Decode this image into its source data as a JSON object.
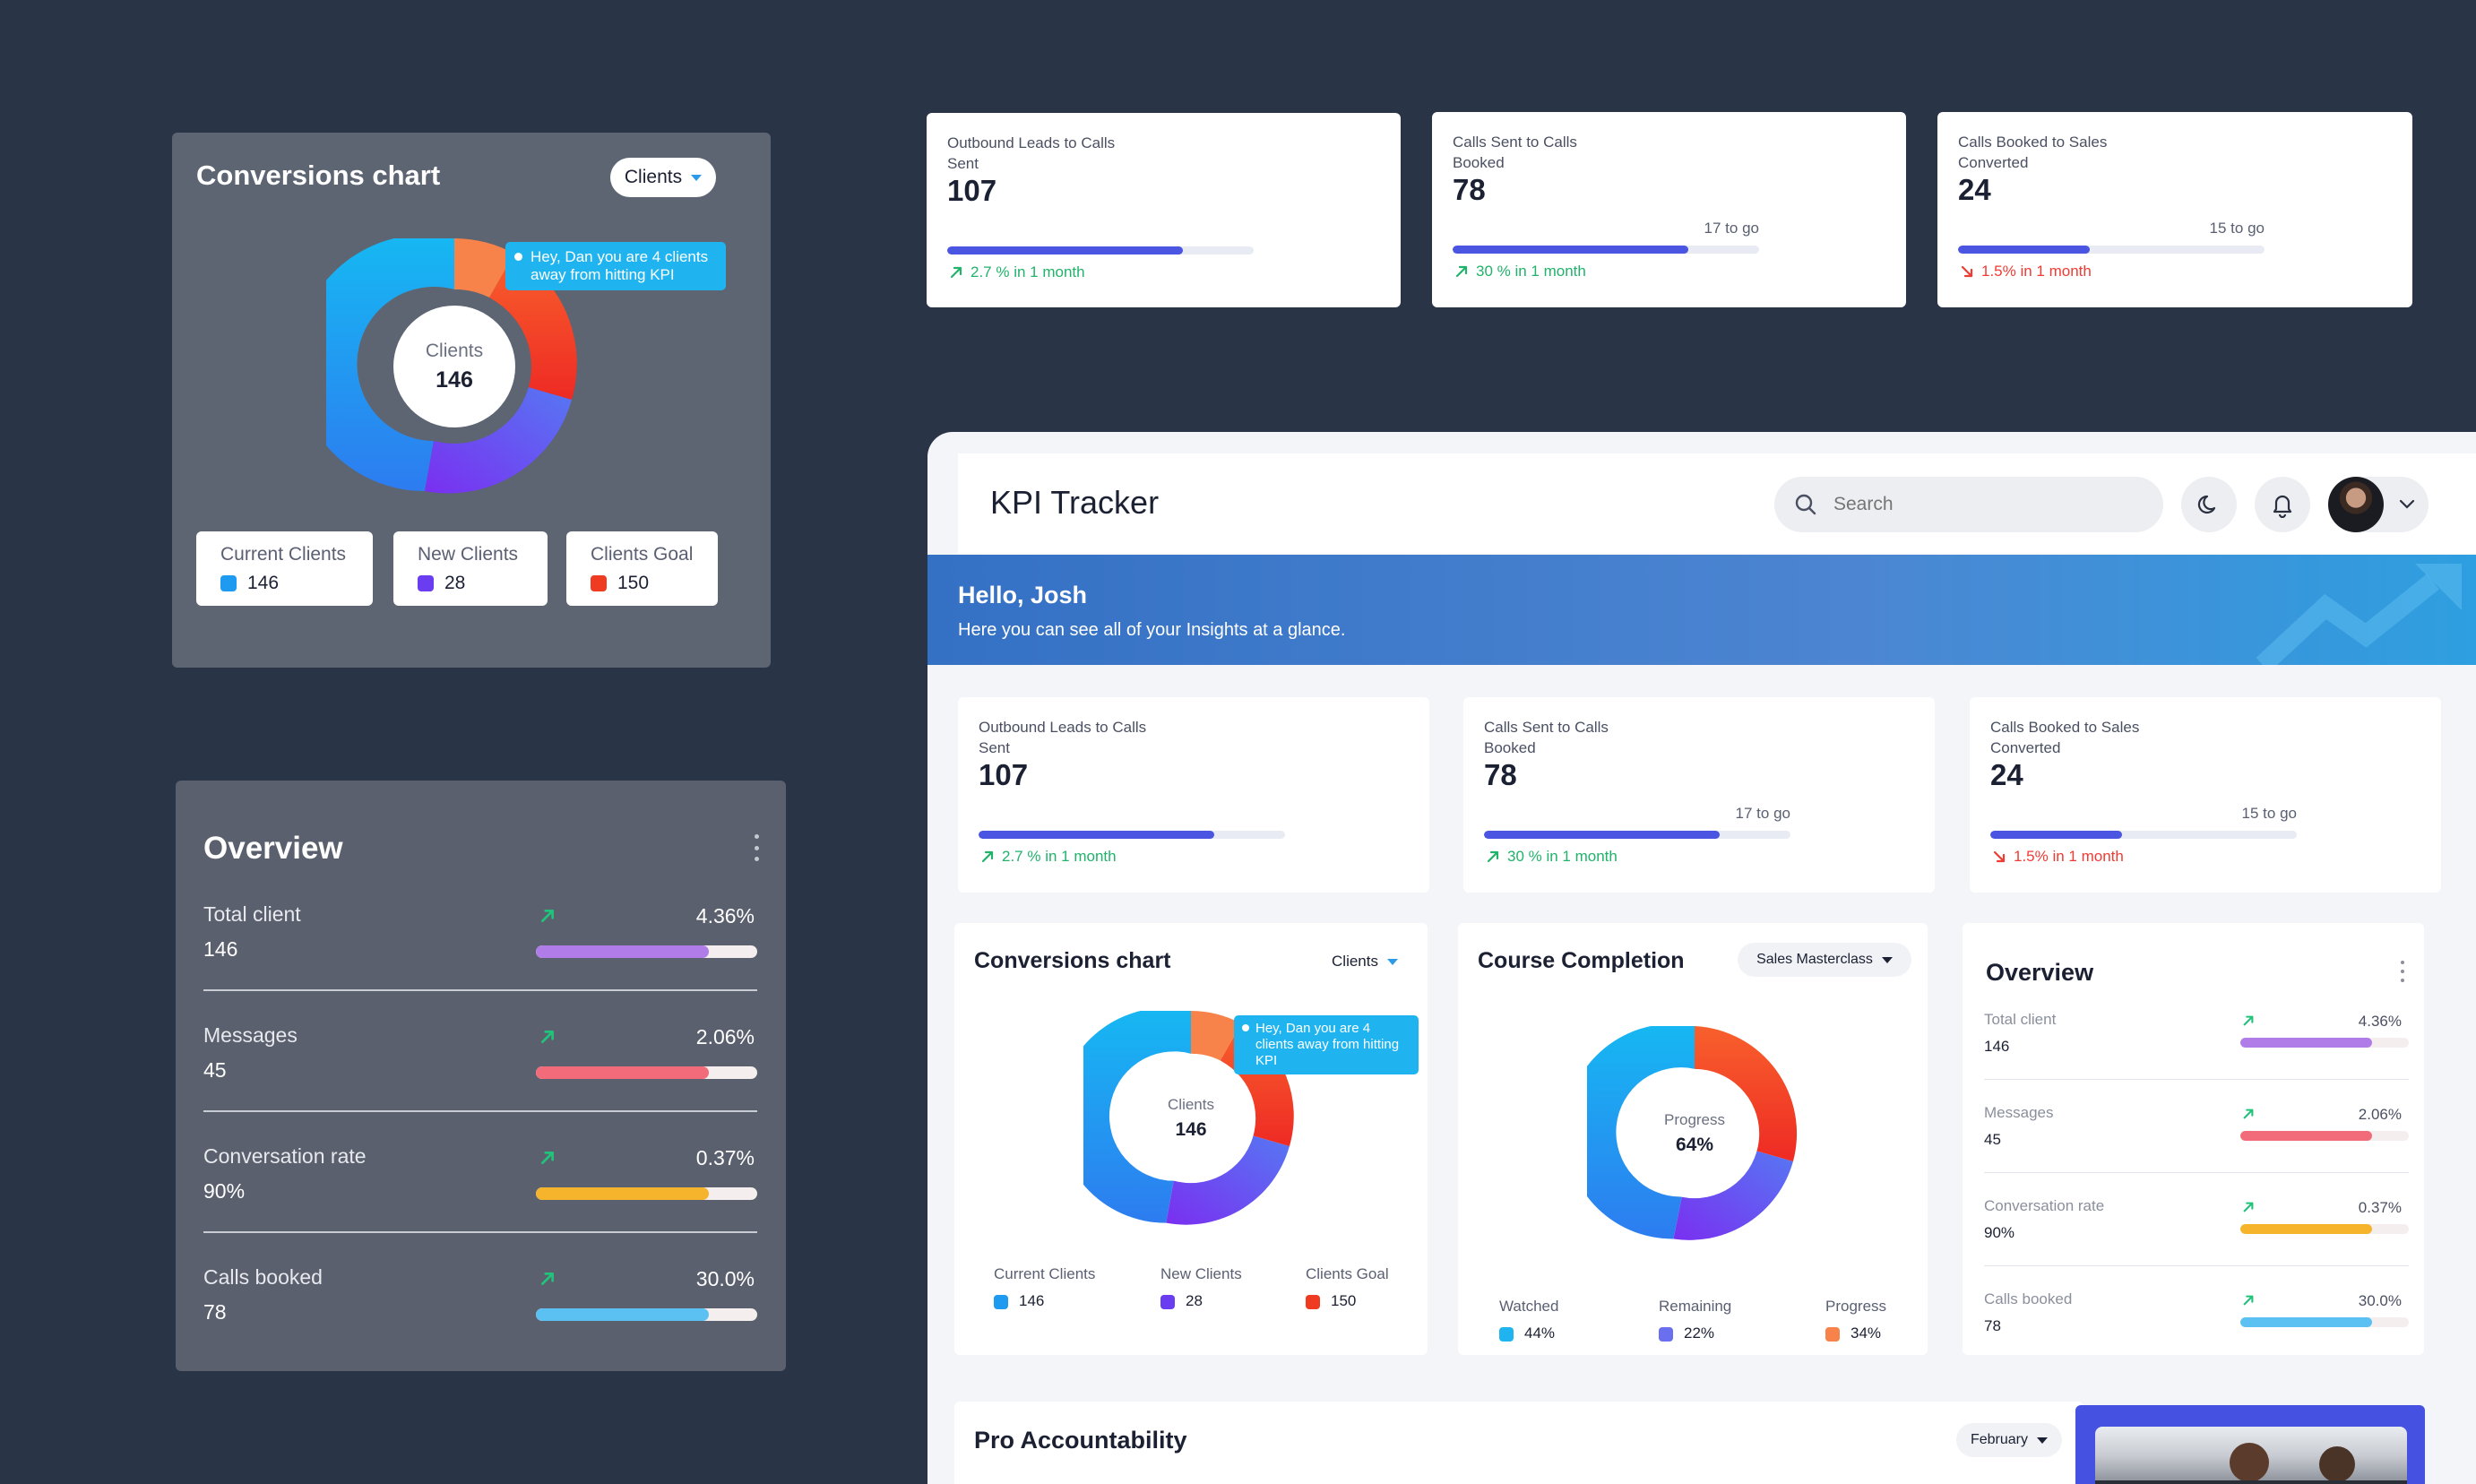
{
  "top_kpis": [
    {
      "title": "Outbound Leads to Calls Sent",
      "value": "107",
      "to_go": "",
      "progress": 0.77,
      "delta": "2.7 % in 1 month",
      "trend": "up"
    },
    {
      "title": "Calls Sent to Calls Booked",
      "value": "78",
      "to_go": "17 to go",
      "progress": 0.77,
      "delta": "30 % in 1 month",
      "trend": "up"
    },
    {
      "title": "Calls Booked to Sales Converted",
      "value": "24",
      "to_go": "15 to go",
      "progress": 0.43,
      "delta": "1.5% in 1 month",
      "trend": "down"
    }
  ],
  "conversions_dark": {
    "title": "Conversions chart",
    "dropdown": "Clients",
    "tooltip": "Hey, Dan you are 4 clients away from hitting KPI",
    "center_label": "Clients",
    "center_value": "146",
    "legend": [
      {
        "label": "Current Clients",
        "value": "146",
        "color": "#1e9bf0"
      },
      {
        "label": "New Clients",
        "value": "28",
        "color": "#6a3df0"
      },
      {
        "label": "Clients Goal",
        "value": "150",
        "color": "#ef3b22"
      }
    ]
  },
  "overview_dark": {
    "title": "Overview",
    "rows": [
      {
        "label": "Total client",
        "value": "146",
        "pct": "4.36%",
        "fill": 0.78,
        "color": "#b07de8"
      },
      {
        "label": "Messages",
        "value": "45",
        "pct": "2.06%",
        "fill": 0.78,
        "color": "#f26b7a"
      },
      {
        "label": "Conversation rate",
        "value": "90%",
        "pct": "0.37%",
        "fill": 0.78,
        "color": "#f6b42c"
      },
      {
        "label": "Calls booked",
        "value": "78",
        "pct": "30.0%",
        "fill": 0.78,
        "color": "#5bc1f2"
      }
    ]
  },
  "app": {
    "title": "KPI Tracker",
    "search_placeholder": "Search",
    "greeting": "Hello, Josh",
    "subgreeting": "Here you can see all of your Insights at a glance.",
    "kpis": [
      {
        "title": "Outbound Leads to Calls Sent",
        "value": "107",
        "to_go": "",
        "progress": 0.77,
        "delta": "2.7 % in 1 month",
        "trend": "up"
      },
      {
        "title": "Calls Sent to Calls Booked",
        "value": "78",
        "to_go": "17 to go",
        "progress": 0.77,
        "delta": "30 % in 1 month",
        "trend": "up"
      },
      {
        "title": "Calls Booked to Sales Converted",
        "value": "24",
        "to_go": "15 to go",
        "progress": 0.43,
        "delta": "1.5% in 1 month",
        "trend": "down"
      }
    ],
    "conversions": {
      "title": "Conversions chart",
      "dropdown": "Clients",
      "tooltip": "Hey, Dan you are 4 clients away from hitting KPI",
      "center_label": "Clients",
      "center_value": "146",
      "legend": [
        {
          "label": "Current Clients",
          "value": "146",
          "color": "#1e9bf0"
        },
        {
          "label": "New Clients",
          "value": "28",
          "color": "#6a3df0"
        },
        {
          "label": "Clients Goal",
          "value": "150",
          "color": "#ef3b22"
        }
      ]
    },
    "course": {
      "title": "Course Completion",
      "dropdown": "Sales Masterclass",
      "center_label": "Progress",
      "center_value": "64%",
      "legend": [
        {
          "label": "Watched",
          "value": "44%",
          "color": "#1fb4f0"
        },
        {
          "label": "Remaining",
          "value": "22%",
          "color": "#6a6ff0"
        },
        {
          "label": "Progress",
          "value": "34%",
          "color": "#f7834a"
        }
      ]
    },
    "overview": {
      "title": "Overview",
      "rows": [
        {
          "label": "Total client",
          "value": "146",
          "pct": "4.36%",
          "fill": 0.78,
          "color": "#b07de8"
        },
        {
          "label": "Messages",
          "value": "45",
          "pct": "2.06%",
          "fill": 0.78,
          "color": "#f26b7a"
        },
        {
          "label": "Conversation rate",
          "value": "90%",
          "pct": "0.37%",
          "fill": 0.78,
          "color": "#f6b42c"
        },
        {
          "label": "Calls booked",
          "value": "78",
          "pct": "30.0%",
          "fill": 0.78,
          "color": "#5bc1f2"
        }
      ]
    },
    "pro": {
      "title": "Pro Accountability",
      "dropdown": "February"
    }
  }
}
